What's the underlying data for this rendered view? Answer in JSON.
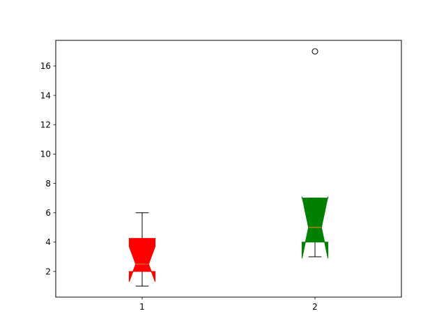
{
  "chart_data": {
    "type": "boxplot",
    "notched": true,
    "categories": [
      "1",
      "2"
    ],
    "ylim": [
      0.25,
      17.75
    ],
    "yticks": [
      2,
      4,
      6,
      8,
      10,
      12,
      14,
      16
    ],
    "ytick_labels": [
      "2",
      "4",
      "6",
      "8",
      "10",
      "12",
      "14",
      "16"
    ],
    "grid": false,
    "series": [
      {
        "whisker_low": 1,
        "q1": 2,
        "median": 2.5,
        "q3": 4.25,
        "whisker_high": 6,
        "notch_low": 1.3,
        "notch_high": 3.7,
        "outliers": [],
        "color": "#ff0000"
      },
      {
        "whisker_low": 3,
        "q1": 4,
        "median": 5,
        "q3": 7,
        "whisker_high": 7,
        "notch_low": 2.9,
        "notch_high": 7.1,
        "outliers": [
          17
        ],
        "color": "#008000"
      }
    ],
    "median_color": "#ff7f0e"
  }
}
